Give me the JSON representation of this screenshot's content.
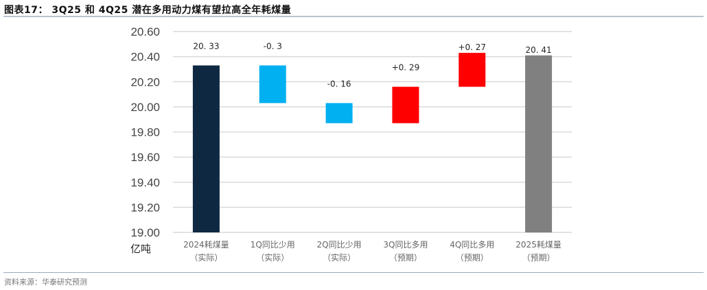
{
  "header": {
    "title": "图表17： 3Q25 和 4Q25 潜在多用动力煤有望拉高全年耗煤量"
  },
  "footer": {
    "source": "资料来源：华泰研究预测"
  },
  "chart_data": {
    "type": "bar",
    "subtype": "waterfall",
    "title": "图表17： 3Q25 和 4Q25 潜在多用动力煤有望拉高全年耗煤量",
    "xlabel": "",
    "ylabel": "亿吨",
    "unit_label": "亿吨",
    "ylim": [
      19.0,
      20.6
    ],
    "yticks": [
      "20.60",
      "20.40",
      "20.20",
      "20.00",
      "19.80",
      "19.60",
      "19.40",
      "19.20",
      "19.00"
    ],
    "grid": true,
    "legend": null,
    "categories": [
      [
        "2024耗煤量",
        "（实际）"
      ],
      [
        "1Q同比少用",
        "（实际）"
      ],
      [
        "2Q同比少用",
        "（实际）"
      ],
      [
        "3Q同比多用",
        "（预期）"
      ],
      [
        "4Q同比多用",
        "（预期）"
      ],
      [
        "2025耗煤量",
        "（预期）"
      ]
    ],
    "values": [
      20.33,
      -0.3,
      -0.16,
      0.29,
      0.27,
      20.41
    ],
    "data_labels": [
      "20. 33",
      "-0. 3",
      "-0. 16",
      "+0. 29",
      "+0. 27",
      "20. 41"
    ],
    "bars": [
      {
        "start": 19.0,
        "end": 20.33,
        "color": "#0f2842"
      },
      {
        "start": 20.33,
        "end": 20.03,
        "color": "#00b0f0"
      },
      {
        "start": 20.03,
        "end": 19.87,
        "color": "#00b0f0"
      },
      {
        "start": 19.87,
        "end": 20.16,
        "color": "#ff0000"
      },
      {
        "start": 20.16,
        "end": 20.43,
        "color": "#ff0000"
      },
      {
        "start": 19.0,
        "end": 20.41,
        "color": "#808080"
      }
    ],
    "colors": {
      "total_actual": "#0f2842",
      "decrease": "#00b0f0",
      "increase": "#ff0000",
      "total_forecast": "#808080",
      "grid": "#d9d9d9"
    }
  }
}
